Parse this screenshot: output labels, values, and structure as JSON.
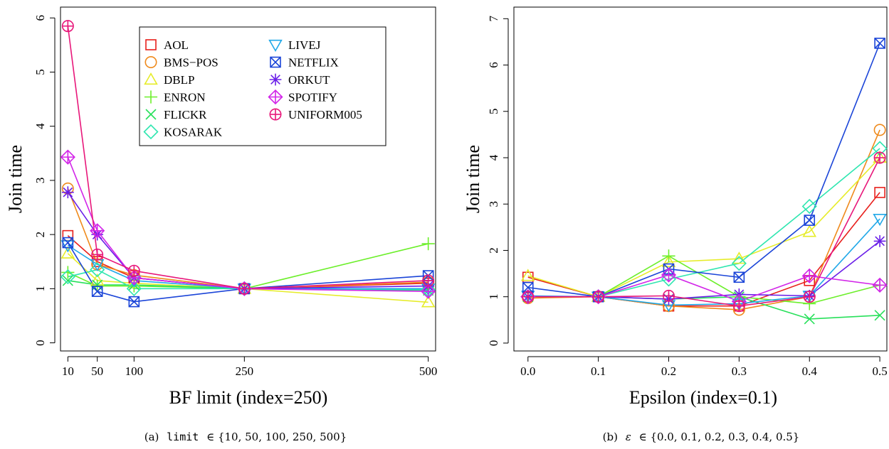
{
  "colors": {
    "AOL": "#e8201c",
    "BMS-POS": "#ef8a1c",
    "DBLP": "#e6ec2a",
    "ENRON": "#6cef2a",
    "FLICKR": "#27e05a",
    "KOSARAK": "#2ee6b0",
    "LIVEJ": "#20a8e8",
    "NETFLIX": "#1b45d8",
    "ORKUT": "#6a1ee8",
    "SPOTIFY": "#d225e8",
    "UNIFORM005": "#e8177a"
  },
  "legend": {
    "col1": [
      "AOL",
      "BMS−POS",
      "DBLP",
      "ENRON",
      "FLICKR",
      "KOSARAK"
    ],
    "col2": [
      "LIVEJ",
      "NETFLIX",
      "ORKUT",
      "SPOTIFY",
      "UNIFORM005"
    ]
  },
  "captions": {
    "a": {
      "label": "(a)",
      "code": "limit",
      "rest": "∈ {10, 50, 100, 250, 500}"
    },
    "b": {
      "label": "(b)",
      "symbol": "ε",
      "rest": "∈ {0.0, 0.1, 0.2, 0.3, 0.4, 0.5}"
    }
  },
  "chart_data": [
    {
      "type": "line",
      "xlabel": "BF limit (index=250)",
      "ylabel": "Join time",
      "x": [
        10,
        50,
        100,
        250,
        500
      ],
      "x_ticks": [
        "10",
        "50",
        "100",
        "250",
        "500"
      ],
      "y_ticks": [
        "0",
        "1",
        "2",
        "3",
        "4",
        "5",
        "6"
      ],
      "xlim": [
        0,
        510
      ],
      "ylim": [
        -0.15,
        6.2
      ],
      "grid": false,
      "legend_position": "top-right",
      "series": [
        {
          "name": "AOL",
          "values": [
            1.98,
            1.5,
            1.2,
            1.0,
            1.1
          ]
        },
        {
          "name": "BMS-POS",
          "values": [
            2.85,
            1.45,
            1.25,
            1.0,
            1.12
          ]
        },
        {
          "name": "DBLP",
          "values": [
            1.65,
            1.15,
            1.1,
            1.0,
            0.75
          ]
        },
        {
          "name": "ENRON",
          "values": [
            1.3,
            1.05,
            1.05,
            1.0,
            1.83
          ]
        },
        {
          "name": "FLICKR",
          "values": [
            1.15,
            1.07,
            1.07,
            1.0,
            0.97
          ]
        },
        {
          "name": "KOSARAK",
          "values": [
            1.22,
            1.35,
            1.0,
            1.0,
            0.98
          ]
        },
        {
          "name": "LIVEJ",
          "values": [
            1.8,
            1.45,
            1.15,
            1.0,
            1.0
          ]
        },
        {
          "name": "NETFLIX",
          "values": [
            1.85,
            0.95,
            0.76,
            1.0,
            1.24
          ]
        },
        {
          "name": "ORKUT",
          "values": [
            2.78,
            2.0,
            1.2,
            1.0,
            1.05
          ]
        },
        {
          "name": "SPOTIFY",
          "values": [
            3.43,
            2.07,
            1.2,
            1.0,
            0.95
          ]
        },
        {
          "name": "UNIFORM005",
          "values": [
            5.85,
            1.63,
            1.33,
            1.0,
            1.15
          ]
        }
      ]
    },
    {
      "type": "line",
      "xlabel": "Epsilon (index=0.1)",
      "ylabel": "Join time",
      "x": [
        0.0,
        0.1,
        0.2,
        0.3,
        0.4,
        0.5
      ],
      "x_ticks": [
        "0.0",
        "0.1",
        "0.2",
        "0.3",
        "0.4",
        "0.5"
      ],
      "y_ticks": [
        "0",
        "1",
        "2",
        "3",
        "4",
        "5",
        "6",
        "7"
      ],
      "xlim": [
        -0.02,
        0.51
      ],
      "ylim": [
        -0.17,
        7.25
      ],
      "grid": false,
      "legend_position": "none",
      "series": [
        {
          "name": "AOL",
          "values": [
            1.42,
            1.0,
            0.8,
            0.8,
            1.35,
            3.25
          ]
        },
        {
          "name": "BMS-POS",
          "values": [
            0.97,
            1.0,
            0.8,
            0.72,
            1.0,
            4.6
          ]
        },
        {
          "name": "DBLP",
          "values": [
            1.45,
            1.0,
            1.75,
            1.82,
            2.4,
            4.0
          ]
        },
        {
          "name": "ENRON",
          "values": [
            1.0,
            1.0,
            1.88,
            1.0,
            0.85,
            1.25
          ]
        },
        {
          "name": "FLICKR",
          "values": [
            1.0,
            1.0,
            0.95,
            1.0,
            0.52,
            0.6
          ]
        },
        {
          "name": "KOSARAK",
          "values": [
            1.0,
            1.0,
            1.38,
            1.72,
            2.95,
            4.2
          ]
        },
        {
          "name": "LIVEJ",
          "values": [
            1.02,
            1.0,
            0.82,
            0.85,
            1.02,
            2.68
          ]
        },
        {
          "name": "NETFLIX",
          "values": [
            1.2,
            1.0,
            1.6,
            1.42,
            2.65,
            6.47
          ]
        },
        {
          "name": "ORKUT",
          "values": [
            1.0,
            1.0,
            0.95,
            1.05,
            1.02,
            2.2
          ]
        },
        {
          "name": "SPOTIFY",
          "values": [
            1.0,
            1.0,
            1.47,
            0.9,
            1.45,
            1.25
          ]
        },
        {
          "name": "UNIFORM005",
          "values": [
            1.0,
            1.0,
            1.02,
            0.8,
            1.0,
            4.0
          ]
        }
      ]
    }
  ]
}
